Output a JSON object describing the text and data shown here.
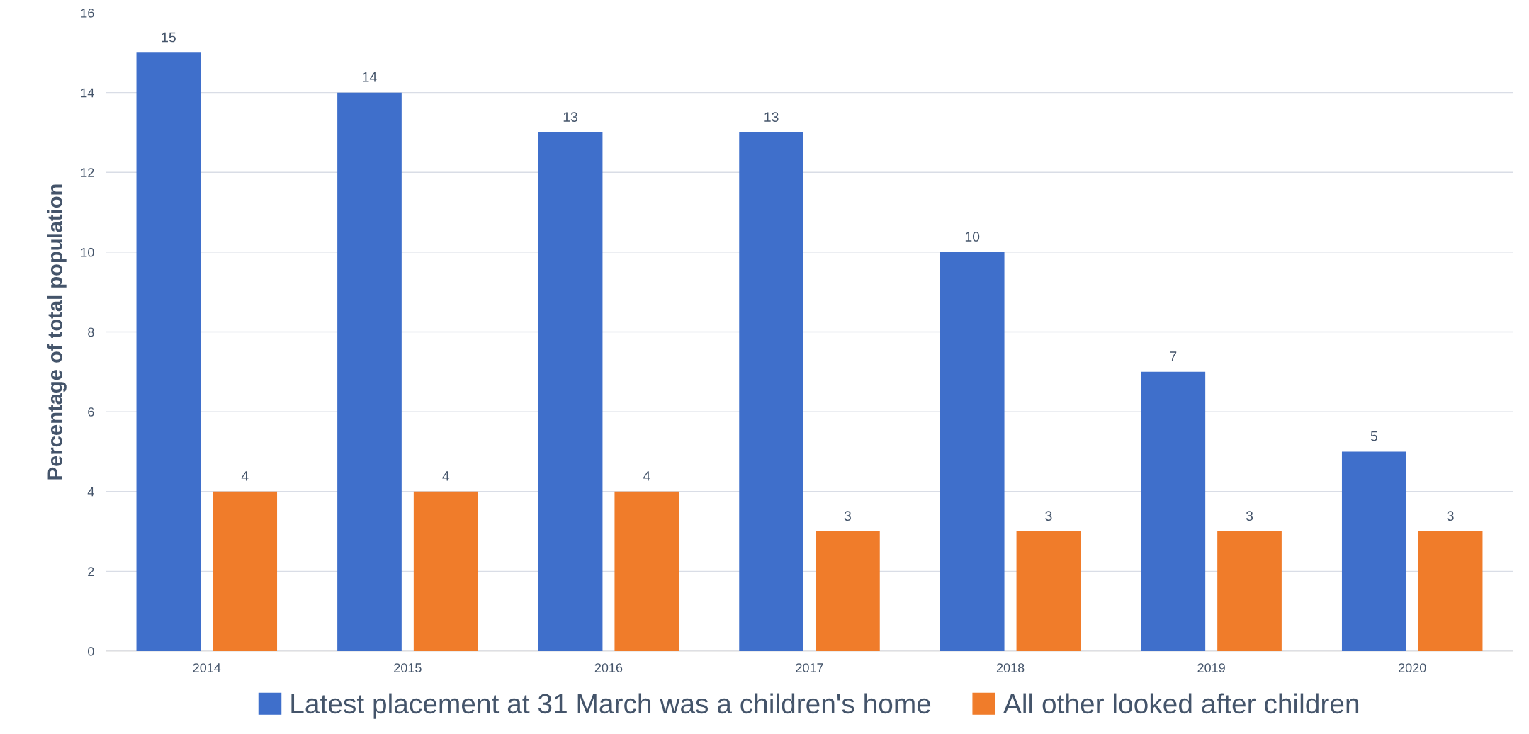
{
  "chart_data": {
    "type": "bar",
    "ylabel": "Percentage of total population",
    "categories": [
      "2014",
      "2015",
      "2016",
      "2017",
      "2018",
      "2019",
      "2020"
    ],
    "series": [
      {
        "name": "Latest placement at 31 March was a children's home",
        "color": "#3f6fcb",
        "values": [
          15,
          14,
          13,
          13,
          10,
          7,
          5
        ]
      },
      {
        "name": "All other looked after children",
        "color": "#f07c2a",
        "values": [
          4,
          4,
          4,
          3,
          3,
          3,
          3
        ]
      }
    ],
    "ylim": [
      0,
      16
    ],
    "yticks": [
      0,
      2,
      4,
      6,
      8,
      10,
      12,
      14,
      16
    ],
    "grid": "y",
    "legend": "bottom",
    "data_labels": true
  }
}
